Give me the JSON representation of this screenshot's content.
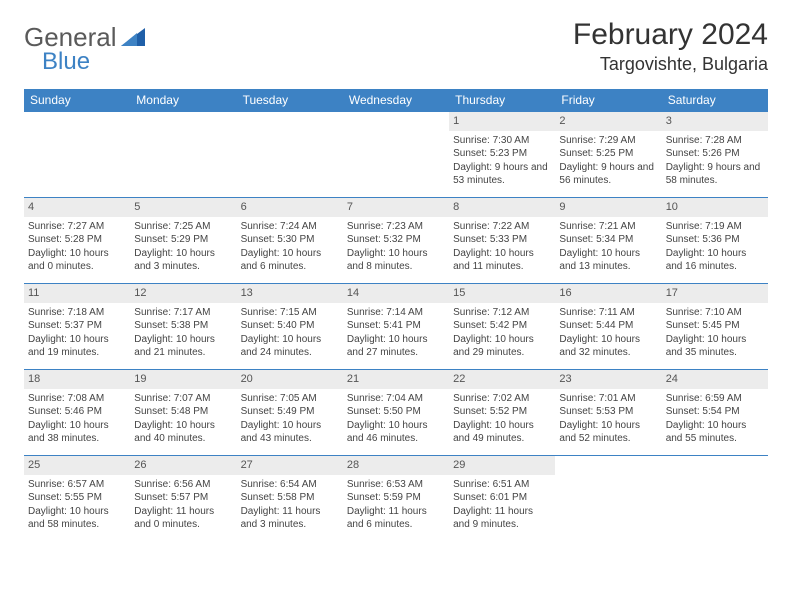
{
  "logo": {
    "text1": "General",
    "text2": "Blue"
  },
  "header": {
    "title": "February 2024",
    "location": "Targovishte, Bulgaria"
  },
  "style": {
    "header_bg": "#3d82c4",
    "header_fg": "#ffffff",
    "daynum_bg": "#ececec",
    "rule_color": "#3d82c4",
    "body_fg": "#444444",
    "page_bg": "#ffffff",
    "title_fontsize": 30,
    "location_fontsize": 18,
    "th_fontsize": 12,
    "cell_fontsize": 10
  },
  "weekdays": [
    "Sunday",
    "Monday",
    "Tuesday",
    "Wednesday",
    "Thursday",
    "Friday",
    "Saturday"
  ],
  "weeks": [
    [
      {
        "n": "",
        "lines": []
      },
      {
        "n": "",
        "lines": []
      },
      {
        "n": "",
        "lines": []
      },
      {
        "n": "",
        "lines": []
      },
      {
        "n": "1",
        "lines": [
          "Sunrise: 7:30 AM",
          "Sunset: 5:23 PM",
          "Daylight: 9 hours and 53 minutes."
        ]
      },
      {
        "n": "2",
        "lines": [
          "Sunrise: 7:29 AM",
          "Sunset: 5:25 PM",
          "Daylight: 9 hours and 56 minutes."
        ]
      },
      {
        "n": "3",
        "lines": [
          "Sunrise: 7:28 AM",
          "Sunset: 5:26 PM",
          "Daylight: 9 hours and 58 minutes."
        ]
      }
    ],
    [
      {
        "n": "4",
        "lines": [
          "Sunrise: 7:27 AM",
          "Sunset: 5:28 PM",
          "Daylight: 10 hours and 0 minutes."
        ]
      },
      {
        "n": "5",
        "lines": [
          "Sunrise: 7:25 AM",
          "Sunset: 5:29 PM",
          "Daylight: 10 hours and 3 minutes."
        ]
      },
      {
        "n": "6",
        "lines": [
          "Sunrise: 7:24 AM",
          "Sunset: 5:30 PM",
          "Daylight: 10 hours and 6 minutes."
        ]
      },
      {
        "n": "7",
        "lines": [
          "Sunrise: 7:23 AM",
          "Sunset: 5:32 PM",
          "Daylight: 10 hours and 8 minutes."
        ]
      },
      {
        "n": "8",
        "lines": [
          "Sunrise: 7:22 AM",
          "Sunset: 5:33 PM",
          "Daylight: 10 hours and 11 minutes."
        ]
      },
      {
        "n": "9",
        "lines": [
          "Sunrise: 7:21 AM",
          "Sunset: 5:34 PM",
          "Daylight: 10 hours and 13 minutes."
        ]
      },
      {
        "n": "10",
        "lines": [
          "Sunrise: 7:19 AM",
          "Sunset: 5:36 PM",
          "Daylight: 10 hours and 16 minutes."
        ]
      }
    ],
    [
      {
        "n": "11",
        "lines": [
          "Sunrise: 7:18 AM",
          "Sunset: 5:37 PM",
          "Daylight: 10 hours and 19 minutes."
        ]
      },
      {
        "n": "12",
        "lines": [
          "Sunrise: 7:17 AM",
          "Sunset: 5:38 PM",
          "Daylight: 10 hours and 21 minutes."
        ]
      },
      {
        "n": "13",
        "lines": [
          "Sunrise: 7:15 AM",
          "Sunset: 5:40 PM",
          "Daylight: 10 hours and 24 minutes."
        ]
      },
      {
        "n": "14",
        "lines": [
          "Sunrise: 7:14 AM",
          "Sunset: 5:41 PM",
          "Daylight: 10 hours and 27 minutes."
        ]
      },
      {
        "n": "15",
        "lines": [
          "Sunrise: 7:12 AM",
          "Sunset: 5:42 PM",
          "Daylight: 10 hours and 29 minutes."
        ]
      },
      {
        "n": "16",
        "lines": [
          "Sunrise: 7:11 AM",
          "Sunset: 5:44 PM",
          "Daylight: 10 hours and 32 minutes."
        ]
      },
      {
        "n": "17",
        "lines": [
          "Sunrise: 7:10 AM",
          "Sunset: 5:45 PM",
          "Daylight: 10 hours and 35 minutes."
        ]
      }
    ],
    [
      {
        "n": "18",
        "lines": [
          "Sunrise: 7:08 AM",
          "Sunset: 5:46 PM",
          "Daylight: 10 hours and 38 minutes."
        ]
      },
      {
        "n": "19",
        "lines": [
          "Sunrise: 7:07 AM",
          "Sunset: 5:48 PM",
          "Daylight: 10 hours and 40 minutes."
        ]
      },
      {
        "n": "20",
        "lines": [
          "Sunrise: 7:05 AM",
          "Sunset: 5:49 PM",
          "Daylight: 10 hours and 43 minutes."
        ]
      },
      {
        "n": "21",
        "lines": [
          "Sunrise: 7:04 AM",
          "Sunset: 5:50 PM",
          "Daylight: 10 hours and 46 minutes."
        ]
      },
      {
        "n": "22",
        "lines": [
          "Sunrise: 7:02 AM",
          "Sunset: 5:52 PM",
          "Daylight: 10 hours and 49 minutes."
        ]
      },
      {
        "n": "23",
        "lines": [
          "Sunrise: 7:01 AM",
          "Sunset: 5:53 PM",
          "Daylight: 10 hours and 52 minutes."
        ]
      },
      {
        "n": "24",
        "lines": [
          "Sunrise: 6:59 AM",
          "Sunset: 5:54 PM",
          "Daylight: 10 hours and 55 minutes."
        ]
      }
    ],
    [
      {
        "n": "25",
        "lines": [
          "Sunrise: 6:57 AM",
          "Sunset: 5:55 PM",
          "Daylight: 10 hours and 58 minutes."
        ]
      },
      {
        "n": "26",
        "lines": [
          "Sunrise: 6:56 AM",
          "Sunset: 5:57 PM",
          "Daylight: 11 hours and 0 minutes."
        ]
      },
      {
        "n": "27",
        "lines": [
          "Sunrise: 6:54 AM",
          "Sunset: 5:58 PM",
          "Daylight: 11 hours and 3 minutes."
        ]
      },
      {
        "n": "28",
        "lines": [
          "Sunrise: 6:53 AM",
          "Sunset: 5:59 PM",
          "Daylight: 11 hours and 6 minutes."
        ]
      },
      {
        "n": "29",
        "lines": [
          "Sunrise: 6:51 AM",
          "Sunset: 6:01 PM",
          "Daylight: 11 hours and 9 minutes."
        ]
      },
      {
        "n": "",
        "lines": []
      },
      {
        "n": "",
        "lines": []
      }
    ]
  ]
}
